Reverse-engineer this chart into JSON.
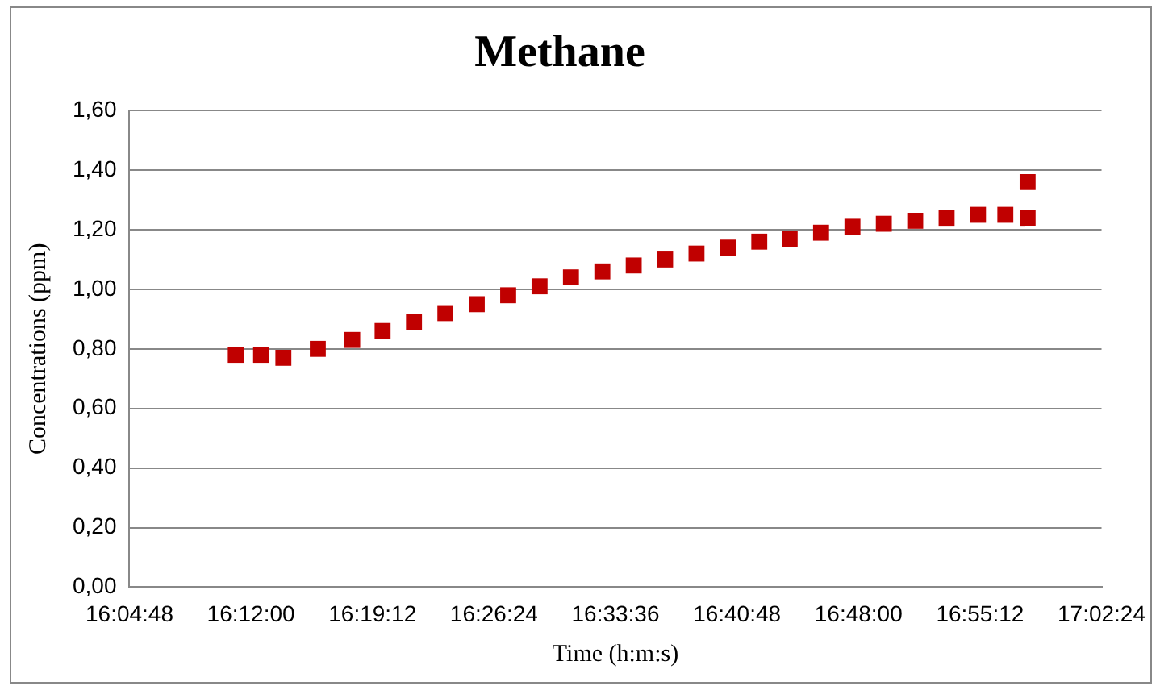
{
  "chart_data": {
    "type": "scatter",
    "title": "Methane",
    "xlabel": "Time (h:m:s)",
    "ylabel": "Concentrations (ppm)",
    "x": [
      16.185,
      16.21,
      16.232,
      16.266,
      16.3,
      16.33,
      16.361,
      16.392,
      16.423,
      16.454,
      16.485,
      16.516,
      16.547,
      16.578,
      16.609,
      16.64,
      16.671,
      16.702,
      16.732,
      16.763,
      16.794,
      16.825,
      16.856,
      16.887,
      16.918,
      16.945,
      16.967,
      16.967
    ],
    "series": [
      {
        "color": "#c00000",
        "values": [
          0.78,
          0.78,
          0.77,
          0.8,
          0.83,
          0.86,
          0.89,
          0.92,
          0.95,
          0.98,
          1.01,
          1.04,
          1.06,
          1.08,
          1.1,
          1.12,
          1.14,
          1.16,
          1.17,
          1.19,
          1.21,
          1.22,
          1.23,
          1.24,
          1.25,
          1.25,
          1.24,
          1.36
        ]
      }
    ],
    "xlim": [
      16.08,
      17.04
    ],
    "xticks": [
      {
        "value": 16.08,
        "label": "16:04:48"
      },
      {
        "value": 16.2,
        "label": "16:12:00"
      },
      {
        "value": 16.32,
        "label": "16:19:12"
      },
      {
        "value": 16.44,
        "label": "16:26:24"
      },
      {
        "value": 16.56,
        "label": "16:33:36"
      },
      {
        "value": 16.68,
        "label": "16:40:48"
      },
      {
        "value": 16.8,
        "label": "16:48:00"
      },
      {
        "value": 16.92,
        "label": "16:55:12"
      },
      {
        "value": 17.04,
        "label": "17:02:24"
      }
    ],
    "ylim": [
      0,
      1.6
    ],
    "yticks": [
      {
        "value": 0,
        "label": "0,00"
      },
      {
        "value": 0.2,
        "label": "0,20"
      },
      {
        "value": 0.4,
        "label": "0,40"
      },
      {
        "value": 0.6,
        "label": "0,60"
      },
      {
        "value": 0.8,
        "label": "0,80"
      },
      {
        "value": 1,
        "label": "1,00"
      },
      {
        "value": 1.2,
        "label": "1,20"
      },
      {
        "value": 1.4,
        "label": "1,40"
      },
      {
        "value": 1.6,
        "label": "1,60"
      }
    ],
    "grid": "y",
    "legend": false,
    "marker": "square"
  }
}
